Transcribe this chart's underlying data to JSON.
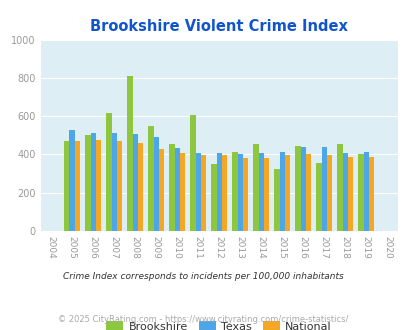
{
  "title": "Brookshire Violent Crime Index",
  "years": [
    2004,
    2005,
    2006,
    2007,
    2008,
    2009,
    2010,
    2011,
    2012,
    2013,
    2014,
    2015,
    2016,
    2017,
    2018,
    2019,
    2020
  ],
  "brookshire": [
    null,
    470,
    500,
    615,
    810,
    550,
    453,
    605,
    350,
    415,
    455,
    325,
    445,
    355,
    455,
    400,
    null
  ],
  "texas": [
    null,
    530,
    510,
    510,
    505,
    490,
    435,
    405,
    405,
    403,
    408,
    412,
    440,
    438,
    410,
    415,
    null
  ],
  "national": [
    null,
    470,
    475,
    470,
    460,
    430,
    405,
    395,
    397,
    380,
    383,
    397,
    400,
    398,
    385,
    385,
    null
  ],
  "bar_colors": {
    "brookshire": "#8dc63f",
    "texas": "#4da6e8",
    "national": "#f5a623"
  },
  "ylim": [
    0,
    1000
  ],
  "yticks": [
    0,
    200,
    400,
    600,
    800,
    1000
  ],
  "bg_color": "#ddeef5",
  "grid_color": "#ffffff",
  "title_color": "#1155cc",
  "tick_color": "#999999",
  "legend_labels": [
    "Brookshire",
    "Texas",
    "National"
  ],
  "footnote1": "Crime Index corresponds to incidents per 100,000 inhabitants",
  "footnote2": "© 2025 CityRating.com - https://www.cityrating.com/crime-statistics/",
  "footnote1_color": "#333333",
  "footnote2_color": "#aaaaaa"
}
